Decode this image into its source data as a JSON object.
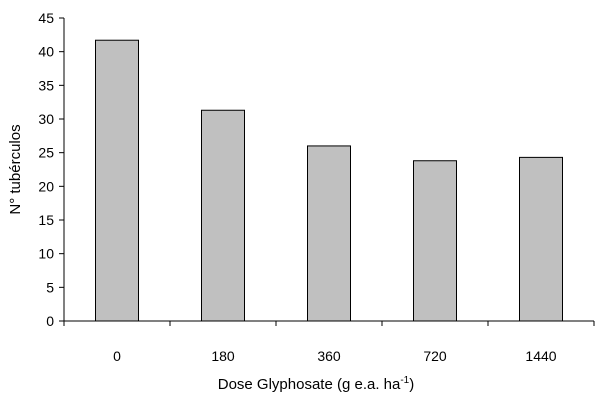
{
  "chart_data": {
    "type": "bar",
    "categories": [
      "0",
      "180",
      "360",
      "720",
      "1440"
    ],
    "values": [
      41.7,
      31.3,
      26.0,
      23.8,
      24.3
    ],
    "xlabel": "Dose Glyphosate (g e.a. ha",
    "xlabel_superscript": "-1",
    "xlabel_suffix": ")",
    "ylabel": "N° tubérculos",
    "ylim": [
      0,
      45
    ],
    "yticks": [
      "0",
      "5",
      "10",
      "15",
      "20",
      "25",
      "30",
      "35",
      "40",
      "45"
    ],
    "grid": false,
    "legend": "none",
    "bar_color": "#c0c0c0",
    "bar_edge_color": "#000000"
  }
}
